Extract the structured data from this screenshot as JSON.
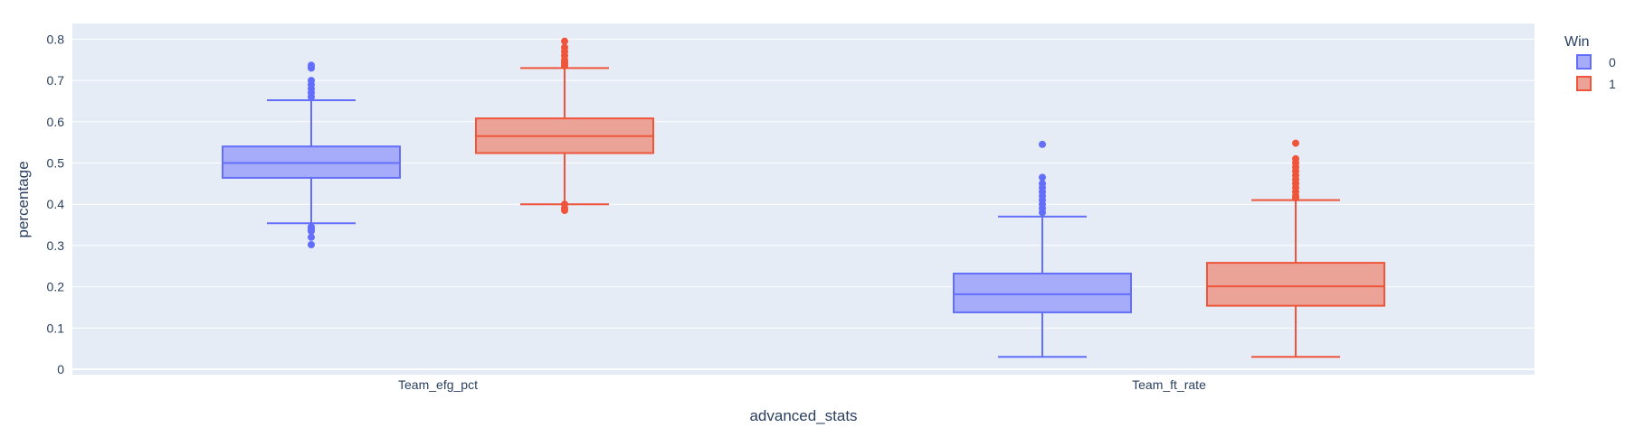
{
  "chart_data": {
    "type": "box",
    "xlabel": "advanced_stats",
    "ylabel": "percentage",
    "categories": [
      "Team_efg_pct",
      "Team_ft_rate"
    ],
    "ylim": [
      -0.01,
      0.82
    ],
    "yticks": [
      0,
      0.1,
      0.2,
      0.3,
      0.4,
      0.5,
      0.6,
      0.7,
      0.8
    ],
    "ytick_labels": [
      "0",
      "0.1",
      "0.2",
      "0.3",
      "0.4",
      "0.5",
      "0.6",
      "0.7",
      "0.8"
    ],
    "grid": true,
    "legend": {
      "title": "Win",
      "placement": "top-right",
      "entries": [
        "0",
        "1"
      ]
    },
    "colors": {
      "plot_bg": "#e5ecf6",
      "grid": "#ffffff",
      "win_0_line": "#636efa",
      "win_0_fill": "#a6acf9",
      "win_1_line": "#ef553b",
      "win_1_fill": "#eba398"
    },
    "series": [
      {
        "name": "0",
        "boxes": [
          {
            "category": "Team_efg_pct",
            "lowerfence": 0.354,
            "q1": 0.464,
            "median": 0.5,
            "q3": 0.54,
            "upperfence": 0.652,
            "outliers": [
              0.302,
              0.32,
              0.335,
              0.34,
              0.345,
              0.66,
              0.67,
              0.68,
              0.69,
              0.7,
              0.73,
              0.737
            ]
          },
          {
            "category": "Team_ft_rate",
            "lowerfence": 0.03,
            "q1": 0.138,
            "median": 0.182,
            "q3": 0.232,
            "upperfence": 0.37,
            "outliers": [
              0.38,
              0.39,
              0.4,
              0.41,
              0.42,
              0.43,
              0.44,
              0.45,
              0.465,
              0.545
            ]
          }
        ]
      },
      {
        "name": "1",
        "boxes": [
          {
            "category": "Team_efg_pct",
            "lowerfence": 0.4,
            "q1": 0.524,
            "median": 0.565,
            "q3": 0.608,
            "upperfence": 0.73,
            "outliers": [
              0.385,
              0.39,
              0.4,
              0.735,
              0.74,
              0.745,
              0.75,
              0.76,
              0.77,
              0.78,
              0.795
            ]
          },
          {
            "category": "Team_ft_rate",
            "lowerfence": 0.03,
            "q1": 0.154,
            "median": 0.201,
            "q3": 0.258,
            "upperfence": 0.41,
            "outliers": [
              0.415,
              0.42,
              0.43,
              0.44,
              0.45,
              0.46,
              0.47,
              0.48,
              0.49,
              0.5,
              0.51,
              0.548
            ]
          }
        ]
      }
    ]
  }
}
